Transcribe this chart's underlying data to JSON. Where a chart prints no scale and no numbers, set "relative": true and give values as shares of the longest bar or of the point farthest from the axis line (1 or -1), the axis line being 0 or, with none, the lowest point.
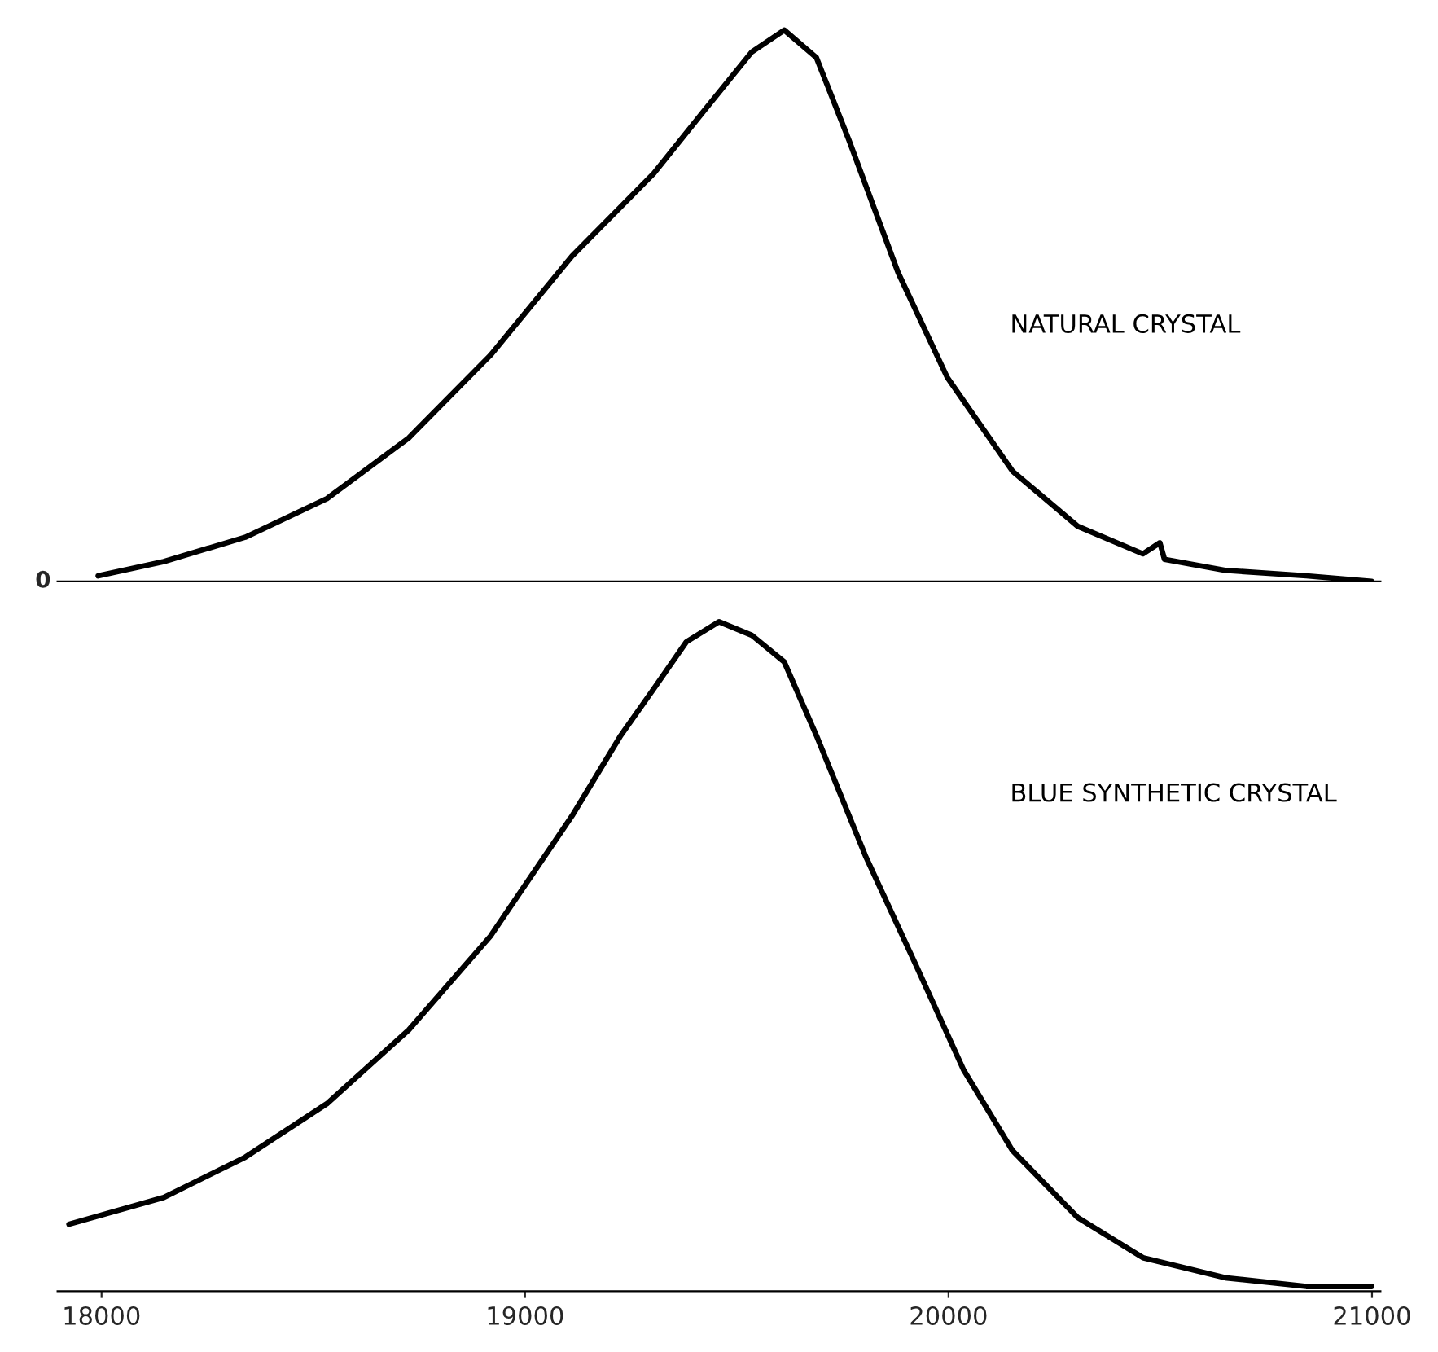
{
  "chart_data": [
    {
      "type": "line",
      "relative": true,
      "xlim": [
        17896,
        21020
      ],
      "tick_labels": false,
      "grid": false,
      "annotations": [
        "0"
      ],
      "series": [
        {
          "name": "NATURAL CRYSTAL",
          "color": "#000000",
          "x": [
            17992,
            18147,
            18339,
            18532,
            18725,
            18918,
            19111,
            19304,
            19419,
            19535,
            19612,
            19688,
            19765,
            19881,
            19997,
            20151,
            20305,
            20459,
            20499,
            20510,
            20653,
            20845,
            20999
          ],
          "values": [
            0.01,
            0.036,
            0.08,
            0.15,
            0.26,
            0.41,
            0.59,
            0.74,
            0.85,
            0.96,
            1.0,
            0.95,
            0.8,
            0.56,
            0.37,
            0.2,
            0.1,
            0.05,
            0.07,
            0.04,
            0.02,
            0.01,
            0.0
          ]
        }
      ]
    },
    {
      "type": "line",
      "relative": true,
      "xlim": [
        17896,
        21020
      ],
      "xticks": [
        18000,
        19000,
        20000,
        21000
      ],
      "tick_labels": "x",
      "grid": false,
      "series": [
        {
          "name": "BLUE SYNTHETIC CRYSTAL",
          "color": "#000000",
          "x": [
            17923,
            18147,
            18339,
            18532,
            18725,
            18918,
            19111,
            19226,
            19304,
            19381,
            19458,
            19535,
            19612,
            19688,
            19804,
            19921,
            20036,
            20151,
            20305,
            20459,
            20653,
            20845,
            20999
          ],
          "values": [
            0.1,
            0.14,
            0.2,
            0.28,
            0.39,
            0.53,
            0.71,
            0.83,
            0.9,
            0.97,
            1.0,
            0.98,
            0.94,
            0.83,
            0.65,
            0.49,
            0.33,
            0.21,
            0.11,
            0.05,
            0.02,
            0.007,
            0.007
          ]
        }
      ]
    }
  ]
}
